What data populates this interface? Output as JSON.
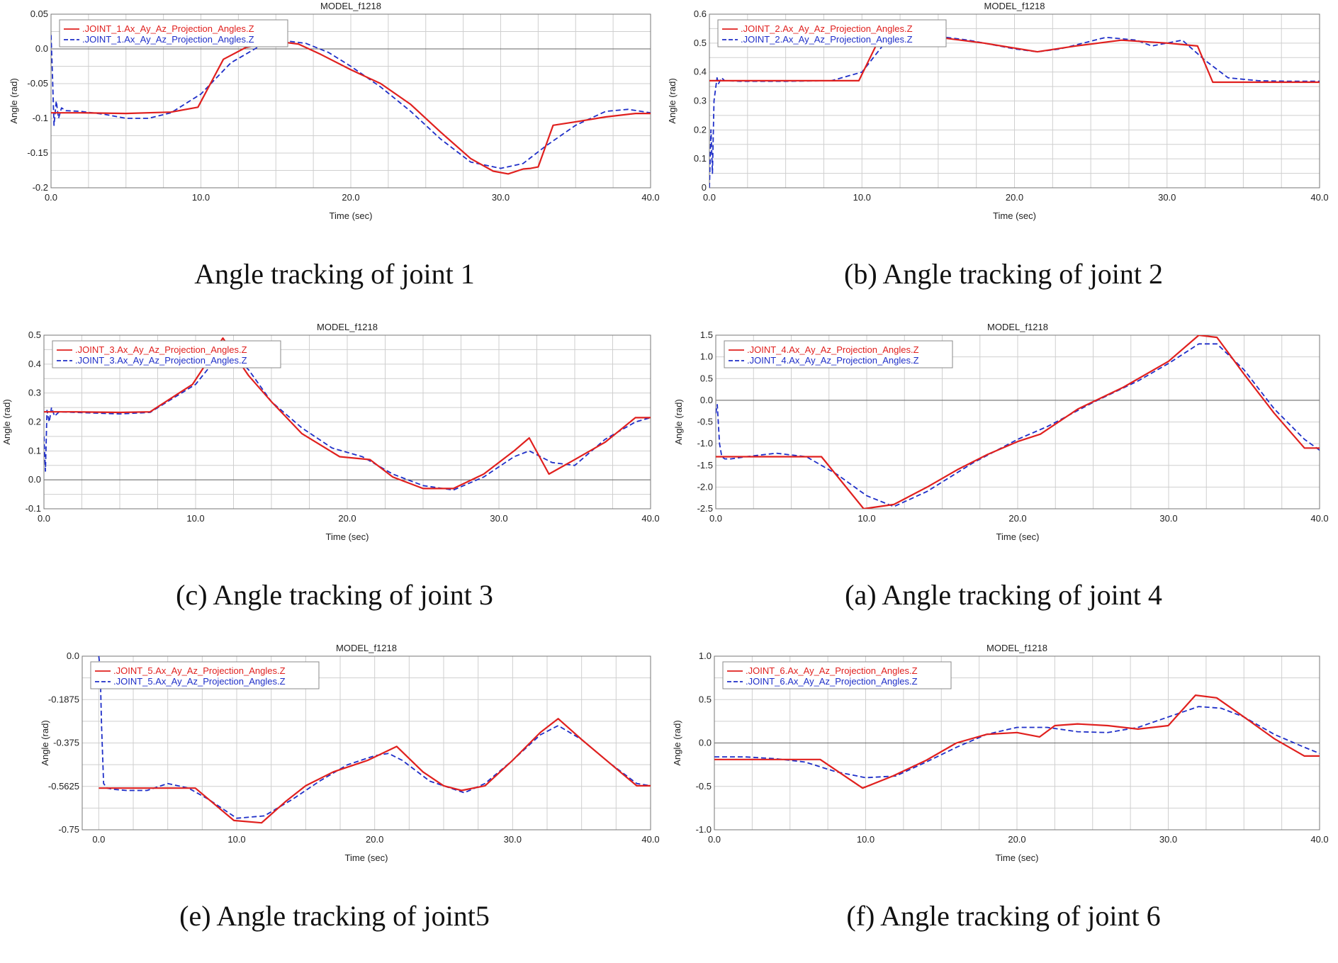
{
  "colors": {
    "actual": "#e0201e",
    "desired": "#1f2fc8",
    "grid": "#cfcfcf"
  },
  "chart_data": [
    {
      "type": "line",
      "title": "MODEL_f1218",
      "caption": "Angle tracking of joint 1",
      "xlabel": "Time (sec)",
      "ylabel": "Angle (rad)",
      "xlim": [
        0,
        40
      ],
      "ylim": [
        -0.2,
        0.05
      ],
      "xticks": [
        0,
        10,
        20,
        30,
        40
      ],
      "xtick_labels": [
        "0.0",
        "10.0",
        "20.0",
        "30.0",
        "40.0"
      ],
      "yticks": [
        -0.2,
        -0.15,
        -0.1,
        -0.05,
        0,
        0.05
      ],
      "ytick_labels": [
        "-0.2",
        "-0.15",
        "-0.1",
        "-0.05",
        "0.0",
        "0.05"
      ],
      "xgrid": [
        0,
        2.5,
        5,
        7.5,
        10,
        12.5,
        15,
        17.5,
        20,
        22.5,
        25,
        27.5,
        30,
        32.5,
        35,
        37.5,
        40
      ],
      "ygrid": [
        -0.2,
        -0.175,
        -0.15,
        -0.125,
        -0.1,
        -0.075,
        -0.05,
        -0.025,
        0,
        0.025,
        0.05
      ],
      "series": [
        {
          "name": ".JOINT_1.Ax_Ay_Az_Projection_Angles.Z",
          "style": "solid",
          "x": [
            0,
            2,
            5,
            8,
            9.8,
            11.5,
            13,
            15,
            16.5,
            18,
            20,
            22,
            24,
            26,
            28,
            29.5,
            30.5,
            31.5,
            32,
            32.5,
            33.5,
            35,
            37,
            39,
            40
          ],
          "y": [
            -0.092,
            -0.092,
            -0.093,
            -0.091,
            -0.084,
            -0.015,
            0.002,
            0.011,
            0.007,
            -0.008,
            -0.03,
            -0.05,
            -0.08,
            -0.12,
            -0.158,
            -0.176,
            -0.18,
            -0.173,
            -0.172,
            -0.17,
            -0.11,
            -0.105,
            -0.098,
            -0.093,
            -0.093
          ]
        },
        {
          "name": ".JOINT_1.Ax_Ay_Az_Projection_Angles.Z",
          "style": "dashed",
          "x": [
            0,
            0.1,
            0.2,
            0.35,
            0.5,
            0.7,
            1,
            2,
            3.5,
            5,
            6.5,
            8,
            10,
            12,
            14,
            15.5,
            17,
            18.5,
            20,
            22,
            24,
            26,
            28,
            30,
            31.5,
            33,
            35,
            37,
            38.5,
            40
          ],
          "y": [
            0.02,
            -0.04,
            -0.11,
            -0.075,
            -0.1,
            -0.085,
            -0.089,
            -0.09,
            -0.094,
            -0.1,
            -0.1,
            -0.092,
            -0.065,
            -0.02,
            0.005,
            0.012,
            0.008,
            -0.005,
            -0.025,
            -0.055,
            -0.09,
            -0.13,
            -0.163,
            -0.172,
            -0.165,
            -0.14,
            -0.11,
            -0.09,
            -0.087,
            -0.092
          ]
        }
      ]
    },
    {
      "type": "line",
      "title": "MODEL_f1218",
      "caption": "(b) Angle tracking of joint 2",
      "xlabel": "Time (sec)",
      "ylabel": "Angle (rad)",
      "xlim": [
        0,
        40
      ],
      "ylim": [
        0,
        0.6
      ],
      "xticks": [
        0,
        10,
        20,
        30,
        40
      ],
      "xtick_labels": [
        "0.0",
        "10.0",
        "20.0",
        "30.0",
        "40.0"
      ],
      "yticks": [
        0,
        0.1,
        0.2,
        0.3,
        0.4,
        0.5,
        0.6
      ],
      "ytick_labels": [
        "0",
        "0.1",
        "0.2",
        "0.3",
        "0.4",
        "0.5",
        "0.6"
      ],
      "xgrid": [
        0,
        2.5,
        5,
        7.5,
        10,
        12.5,
        15,
        17.5,
        20,
        22.5,
        25,
        27.5,
        30,
        32.5,
        35,
        37.5,
        40
      ],
      "ygrid": [
        0,
        0.05,
        0.1,
        0.15,
        0.2,
        0.25,
        0.3,
        0.35,
        0.4,
        0.45,
        0.5,
        0.55,
        0.6
      ],
      "series": [
        {
          "name": ".JOINT_2.Ax_Ay_Az_Projection_Angles.Z",
          "style": "solid",
          "x": [
            0,
            2,
            5,
            8,
            9.8,
            11,
            12,
            15,
            18,
            21.5,
            24,
            27,
            30,
            32,
            33,
            35,
            38,
            40
          ],
          "y": [
            0.37,
            0.37,
            0.37,
            0.37,
            0.37,
            0.5,
            0.53,
            0.52,
            0.5,
            0.47,
            0.49,
            0.51,
            0.5,
            0.49,
            0.365,
            0.365,
            0.365,
            0.365
          ]
        },
        {
          "name": ".JOINT_2.Ax_Ay_Az_Projection_Angles.Z",
          "style": "dashed",
          "x": [
            0,
            0.1,
            0.2,
            0.3,
            0.4,
            0.5,
            0.6,
            0.8,
            1,
            2,
            5,
            8,
            10,
            11.5,
            14,
            17,
            20,
            21.5,
            23,
            26,
            28,
            29,
            31,
            32.5,
            34,
            36,
            38,
            40
          ],
          "y": [
            0,
            0.2,
            0.05,
            0.3,
            0.34,
            0.38,
            0.36,
            0.38,
            0.37,
            0.368,
            0.368,
            0.37,
            0.4,
            0.5,
            0.53,
            0.51,
            0.48,
            0.47,
            0.48,
            0.52,
            0.51,
            0.49,
            0.51,
            0.44,
            0.38,
            0.37,
            0.368,
            0.368
          ]
        }
      ]
    },
    {
      "type": "line",
      "title": "MODEL_f1218",
      "caption": "(c) Angle tracking of joint 3",
      "xlabel": "Time (sec)",
      "ylabel": "Angle (rad)",
      "xlim": [
        0,
        40
      ],
      "ylim": [
        -0.1,
        0.5
      ],
      "xticks": [
        0,
        10,
        20,
        30,
        40
      ],
      "xtick_labels": [
        "0.0",
        "10.0",
        "20.0",
        "30.0",
        "40.0"
      ],
      "yticks": [
        -0.1,
        0,
        0.1,
        0.2,
        0.3,
        0.4,
        0.5
      ],
      "ytick_labels": [
        "-0.1",
        "0.0",
        "0.1",
        "0.2",
        "0.3",
        "0.4",
        "0.5"
      ],
      "xgrid": [
        0,
        2.5,
        5,
        7.5,
        10,
        12.5,
        15,
        17.5,
        20,
        22.5,
        25,
        27.5,
        30,
        32.5,
        35,
        37.5,
        40
      ],
      "ygrid": [
        -0.1,
        -0.05,
        0,
        0.05,
        0.1,
        0.15,
        0.2,
        0.25,
        0.3,
        0.35,
        0.4,
        0.45,
        0.5
      ],
      "series": [
        {
          "name": ".JOINT_3.Ax_Ay_Az_Projection_Angles.Z",
          "style": "solid",
          "x": [
            0,
            2,
            5,
            7,
            9.8,
            11.8,
            13.5,
            15,
            17,
            19.5,
            21.5,
            23,
            25,
            27,
            29,
            31,
            32,
            33.3,
            35,
            37,
            39,
            40
          ],
          "y": [
            0.235,
            0.235,
            0.233,
            0.235,
            0.33,
            0.49,
            0.36,
            0.27,
            0.16,
            0.08,
            0.07,
            0.01,
            -0.03,
            -0.03,
            0.02,
            0.1,
            0.145,
            0.02,
            0.07,
            0.13,
            0.215,
            0.215
          ]
        },
        {
          "name": ".JOINT_3.Ax_Ay_Az_Projection_Angles.Z",
          "style": "dashed",
          "x": [
            0,
            0.1,
            0.2,
            0.35,
            0.5,
            0.7,
            1,
            2,
            5,
            7,
            10,
            12,
            13.5,
            15,
            17,
            19,
            21,
            23,
            25,
            27,
            29,
            31,
            32,
            33.5,
            35,
            37,
            39,
            40
          ],
          "y": [
            0.15,
            0.03,
            0.24,
            0.2,
            0.25,
            0.22,
            0.235,
            0.233,
            0.228,
            0.233,
            0.33,
            0.46,
            0.38,
            0.27,
            0.18,
            0.11,
            0.08,
            0.02,
            -0.02,
            -0.035,
            0.01,
            0.08,
            0.1,
            0.06,
            0.05,
            0.14,
            0.2,
            0.215
          ]
        }
      ]
    },
    {
      "type": "line",
      "title": "MODEL_f1218",
      "caption": "(a) Angle tracking of joint 4",
      "xlabel": "Time (sec)",
      "ylabel": "Angle (rad)",
      "xlim": [
        0,
        40
      ],
      "ylim": [
        -2.5,
        1.5
      ],
      "xticks": [
        0,
        10,
        20,
        30,
        40
      ],
      "xtick_labels": [
        "0.0",
        "10.0",
        "20.0",
        "30.0",
        "40.0"
      ],
      "yticks": [
        -2.5,
        -2,
        -1.5,
        -1,
        -0.5,
        0,
        0.5,
        1,
        1.5
      ],
      "ytick_labels": [
        "-2.5",
        "-2.0",
        "-1.5",
        "-1.0",
        "-0.5",
        "0.0",
        "0.5",
        "1.0",
        "1.5"
      ],
      "xgrid": [
        0,
        2.5,
        5,
        7.5,
        10,
        12.5,
        15,
        17.5,
        20,
        22.5,
        25,
        27.5,
        30,
        32.5,
        35,
        37.5,
        40
      ],
      "ygrid": [
        -2.5,
        -2,
        -1.5,
        -1,
        -0.5,
        0,
        0.5,
        1,
        1.5
      ],
      "series": [
        {
          "name": ".JOINT_4.Ax_Ay_Az_Projection_Angles.Z",
          "style": "solid",
          "x": [
            0,
            2,
            5,
            7,
            9.8,
            11.8,
            14,
            16,
            18,
            20,
            21.5,
            24,
            27,
            30,
            32,
            33.2,
            35,
            37,
            39,
            40
          ],
          "y": [
            -1.3,
            -1.3,
            -1.3,
            -1.3,
            -2.5,
            -2.4,
            -2.0,
            -1.6,
            -1.25,
            -0.95,
            -0.78,
            -0.2,
            0.3,
            0.9,
            1.5,
            1.45,
            0.6,
            -0.3,
            -1.1,
            -1.1
          ]
        },
        {
          "name": ".JOINT_4.Ax_Ay_Az_Projection_Angles.Z",
          "style": "dashed",
          "x": [
            0,
            0.1,
            0.25,
            0.4,
            0.6,
            1,
            2,
            4,
            6,
            8,
            10,
            11.8,
            14,
            17,
            20,
            22,
            25,
            28,
            30,
            32,
            33.2,
            35,
            37,
            39,
            40
          ],
          "y": [
            -0.3,
            -0.1,
            -1.0,
            -1.3,
            -1.35,
            -1.35,
            -1.3,
            -1.22,
            -1.3,
            -1.7,
            -2.2,
            -2.45,
            -2.1,
            -1.45,
            -0.9,
            -0.6,
            -0.05,
            0.45,
            0.85,
            1.3,
            1.3,
            0.7,
            -0.2,
            -0.9,
            -1.15
          ]
        }
      ]
    },
    {
      "type": "line",
      "title": "MODEL_f1218",
      "caption": "(e) Angle tracking of joint5",
      "xlabel": "Time (sec)",
      "ylabel": "Angle (rad)",
      "xlim": [
        -1.2,
        40
      ],
      "ylim": [
        -0.75,
        0
      ],
      "xticks": [
        0,
        10,
        20,
        30,
        40
      ],
      "xtick_labels": [
        "0.0",
        "10.0",
        "20.0",
        "30.0",
        "40.0"
      ],
      "yticks": [
        -0.75,
        -0.5625,
        -0.375,
        -0.1875,
        0
      ],
      "ytick_labels": [
        "-0.75",
        "-0.5625",
        "-0.375",
        "-0.1875",
        "0.0"
      ],
      "xgrid": [
        0,
        2.5,
        5,
        7.5,
        10,
        12.5,
        15,
        17.5,
        20,
        22.5,
        25,
        27.5,
        30,
        32.5,
        35,
        37.5,
        40
      ],
      "ygrid": [
        -0.75,
        -0.65625,
        -0.5625,
        -0.46875,
        -0.375,
        -0.28125,
        -0.1875,
        -0.09375,
        0
      ],
      "series": [
        {
          "name": ".JOINT_5.Ax_Ay_Az_Projection_Angles.Z",
          "style": "solid",
          "x": [
            0,
            2,
            5,
            7,
            9.8,
            11.8,
            13.5,
            15,
            17,
            19.5,
            21.6,
            23.5,
            25,
            26.3,
            28,
            30,
            32,
            33.3,
            35,
            37,
            39,
            40
          ],
          "y": [
            -0.57,
            -0.57,
            -0.57,
            -0.57,
            -0.71,
            -0.72,
            -0.63,
            -0.56,
            -0.5,
            -0.45,
            -0.39,
            -0.5,
            -0.56,
            -0.58,
            -0.56,
            -0.45,
            -0.33,
            -0.27,
            -0.36,
            -0.46,
            -0.56,
            -0.56
          ]
        },
        {
          "name": ".JOINT_5.Ax_Ay_Az_Projection_Angles.Z",
          "style": "dashed",
          "x": [
            0,
            0.1,
            0.2,
            0.35,
            0.6,
            1,
            2,
            3.5,
            5,
            6.5,
            8,
            10,
            12,
            14,
            16,
            18,
            20,
            21,
            22,
            24,
            26.5,
            28,
            30,
            32,
            33.3,
            35,
            37,
            39,
            40
          ],
          "y": [
            0,
            -0.05,
            -0.3,
            -0.55,
            -0.57,
            -0.575,
            -0.58,
            -0.58,
            -0.55,
            -0.57,
            -0.62,
            -0.7,
            -0.69,
            -0.62,
            -0.54,
            -0.47,
            -0.43,
            -0.42,
            -0.45,
            -0.54,
            -0.59,
            -0.55,
            -0.45,
            -0.34,
            -0.3,
            -0.36,
            -0.46,
            -0.55,
            -0.56
          ]
        }
      ]
    },
    {
      "type": "line",
      "title": "MODEL_f1218",
      "caption": "(f) Angle tracking of joint 6",
      "xlabel": "Time (sec)",
      "ylabel": "Angle (rad)",
      "xlim": [
        0,
        40
      ],
      "ylim": [
        -1,
        1
      ],
      "xticks": [
        0,
        10,
        20,
        30,
        40
      ],
      "xtick_labels": [
        "0.0",
        "10.0",
        "20.0",
        "30.0",
        "40.0"
      ],
      "yticks": [
        -1,
        -0.5,
        0,
        0.5,
        1
      ],
      "ytick_labels": [
        "-1.0",
        "-0.5",
        "0.0",
        "0.5",
        "1.0"
      ],
      "xgrid": [
        0,
        2.5,
        5,
        7.5,
        10,
        12.5,
        15,
        17.5,
        20,
        22.5,
        25,
        27.5,
        30,
        32.5,
        35,
        37.5,
        40
      ],
      "ygrid": [
        -1,
        -0.75,
        -0.5,
        -0.25,
        0,
        0.25,
        0.5,
        0.75,
        1
      ],
      "series": [
        {
          "name": ".JOINT_6.Ax_Ay_Az_Projection_Angles.Z",
          "style": "solid",
          "x": [
            0,
            2,
            5,
            7,
            9.8,
            11.8,
            14,
            16,
            18,
            20,
            21.5,
            22.5,
            24,
            26,
            28,
            30,
            31.8,
            33.2,
            35,
            37,
            39,
            40
          ],
          "y": [
            -0.19,
            -0.19,
            -0.19,
            -0.19,
            -0.52,
            -0.38,
            -0.2,
            0,
            0.1,
            0.12,
            0.07,
            0.2,
            0.22,
            0.2,
            0.16,
            0.2,
            0.55,
            0.52,
            0.3,
            0.05,
            -0.15,
            -0.15
          ]
        },
        {
          "name": ".JOINT_6.Ax_Ay_Az_Projection_Angles.Z",
          "style": "dashed",
          "x": [
            0,
            2,
            4,
            6,
            8,
            10,
            12,
            14,
            16,
            18,
            20,
            22,
            24,
            26,
            28,
            30,
            32,
            33.5,
            35,
            37,
            39,
            40
          ],
          "y": [
            -0.16,
            -0.16,
            -0.18,
            -0.22,
            -0.33,
            -0.4,
            -0.38,
            -0.22,
            -0.05,
            0.1,
            0.18,
            0.18,
            0.13,
            0.12,
            0.18,
            0.3,
            0.42,
            0.4,
            0.3,
            0.1,
            -0.05,
            -0.12
          ]
        }
      ]
    }
  ]
}
